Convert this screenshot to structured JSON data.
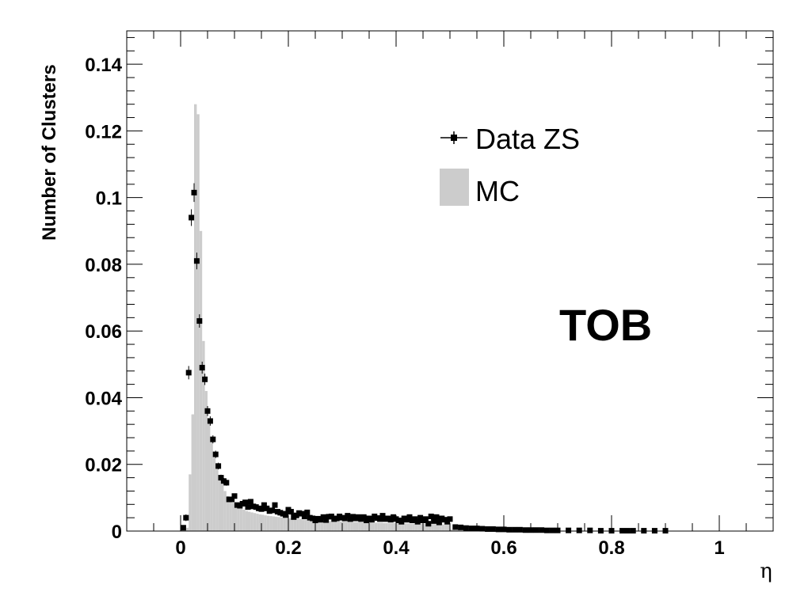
{
  "chart_data": {
    "type": "histogram",
    "xlabel": "η",
    "ylabel": "Number of Clusters",
    "xlim": [
      -0.1,
      1.1
    ],
    "ylim": [
      0,
      0.15
    ],
    "xticks": [
      "0",
      "0.2",
      "0.4",
      "0.6",
      "0.8",
      "1"
    ],
    "yticks": [
      "0",
      "0.02",
      "0.04",
      "0.06",
      "0.08",
      "0.1",
      "0.12",
      "0.14"
    ],
    "annotation": "TOB",
    "legend": [
      {
        "label": "Data ZS",
        "style": "marker",
        "color": "#000000"
      },
      {
        "label": "MC",
        "style": "fill",
        "color": "#cccccc"
      }
    ],
    "series": [
      {
        "name": "MC",
        "kind": "histogram",
        "color": "#cccccc",
        "bin_width": 0.005,
        "x": [
          0.0025,
          0.0075,
          0.0125,
          0.0175,
          0.0225,
          0.0275,
          0.0325,
          0.0375,
          0.0425,
          0.0475,
          0.0525,
          0.0575,
          0.0625,
          0.0675,
          0.0725,
          0.0775,
          0.0825,
          0.0875,
          0.0925,
          0.0975,
          0.1025,
          0.1075,
          0.1125,
          0.1175,
          0.1225,
          0.1275,
          0.1325,
          0.1375,
          0.1425,
          0.1475,
          0.1525,
          0.1575,
          0.1625,
          0.1675,
          0.1725,
          0.1775,
          0.1825,
          0.1875,
          0.1925,
          0.1975,
          0.2025,
          0.2075,
          0.2125,
          0.2175,
          0.2225,
          0.2275,
          0.2325,
          0.2375,
          0.2425,
          0.2475,
          0.2525,
          0.2575,
          0.2625,
          0.2675,
          0.2725,
          0.2775,
          0.2825,
          0.2875,
          0.2925,
          0.2975,
          0.3025,
          0.3075,
          0.3125,
          0.3175,
          0.3225,
          0.3275,
          0.3325,
          0.3375,
          0.3425,
          0.3475,
          0.3525,
          0.3575,
          0.3625,
          0.3675,
          0.3725,
          0.3775,
          0.3825,
          0.3875,
          0.3925,
          0.3975,
          0.4025,
          0.4075,
          0.4125,
          0.4175,
          0.4225,
          0.4275,
          0.4325,
          0.4375,
          0.4425,
          0.4475,
          0.4525,
          0.4575,
          0.4625,
          0.4675,
          0.4725,
          0.4775,
          0.4825,
          0.4875,
          0.4925,
          0.4975,
          0.5025,
          0.5075,
          0.5125,
          0.5175,
          0.5225,
          0.5275,
          0.5325,
          0.5375,
          0.5425,
          0.5475
        ],
        "values": [
          0,
          0,
          0.001,
          0.017,
          0.035,
          0.128,
          0.125,
          0.09,
          0.057,
          0.042,
          0.033,
          0.027,
          0.022,
          0.019,
          0.016,
          0.014,
          0.012,
          0.0105,
          0.0095,
          0.0085,
          0.0078,
          0.0072,
          0.0068,
          0.0064,
          0.006,
          0.0058,
          0.0056,
          0.0054,
          0.0052,
          0.005,
          0.0049,
          0.0047,
          0.0046,
          0.0045,
          0.0044,
          0.0043,
          0.0042,
          0.0041,
          0.004,
          0.0039,
          0.0038,
          0.0038,
          0.0037,
          0.0036,
          0.0036,
          0.0035,
          0.0035,
          0.0034,
          0.0034,
          0.0033,
          0.0033,
          0.0032,
          0.0032,
          0.0031,
          0.0031,
          0.003,
          0.003,
          0.003,
          0.0029,
          0.0029,
          0.0029,
          0.0028,
          0.0028,
          0.0028,
          0.0027,
          0.0027,
          0.0027,
          0.0026,
          0.0026,
          0.0026,
          0.0026,
          0.0025,
          0.0025,
          0.0025,
          0.0025,
          0.0024,
          0.0024,
          0.0024,
          0.0024,
          0.0024,
          0.0023,
          0.0023,
          0.0023,
          0.0023,
          0.0023,
          0.0022,
          0.0022,
          0.0022,
          0.0022,
          0.0022,
          0.0022,
          0.0021,
          0.0021,
          0.0021,
          0.0021,
          0.0021,
          0.0021,
          0.002,
          0.002,
          0.002,
          0.0005,
          0.0004,
          0.0003,
          0.0003,
          0.0002,
          0.0002,
          0.0002,
          0.0001,
          0.0001,
          0.0001
        ]
      },
      {
        "name": "Data ZS",
        "kind": "points",
        "color": "#000000",
        "x": [
          0.005,
          0.01,
          0.015,
          0.02,
          0.025,
          0.03,
          0.035,
          0.04,
          0.045,
          0.05,
          0.055,
          0.06,
          0.065,
          0.07,
          0.075,
          0.08,
          0.085,
          0.09,
          0.095,
          0.1,
          0.105,
          0.11,
          0.115,
          0.12,
          0.125,
          0.13,
          0.135,
          0.14,
          0.145,
          0.15,
          0.155,
          0.16,
          0.165,
          0.17,
          0.175,
          0.18,
          0.185,
          0.19,
          0.195,
          0.2,
          0.205,
          0.21,
          0.215,
          0.22,
          0.225,
          0.23,
          0.235,
          0.24,
          0.245,
          0.25,
          0.255,
          0.26,
          0.265,
          0.27,
          0.275,
          0.28,
          0.285,
          0.29,
          0.295,
          0.3,
          0.305,
          0.31,
          0.315,
          0.32,
          0.325,
          0.33,
          0.335,
          0.34,
          0.345,
          0.35,
          0.355,
          0.36,
          0.365,
          0.37,
          0.375,
          0.38,
          0.385,
          0.39,
          0.395,
          0.4,
          0.405,
          0.41,
          0.415,
          0.42,
          0.425,
          0.43,
          0.435,
          0.44,
          0.445,
          0.45,
          0.455,
          0.46,
          0.465,
          0.47,
          0.475,
          0.48,
          0.485,
          0.49,
          0.495,
          0.5,
          0.51,
          0.52,
          0.53,
          0.54,
          0.55,
          0.56,
          0.57,
          0.58,
          0.59,
          0.6,
          0.61,
          0.62,
          0.63,
          0.64,
          0.65,
          0.66,
          0.67,
          0.68,
          0.69,
          0.7,
          0.72,
          0.74,
          0.76,
          0.78,
          0.8,
          0.82,
          0.83,
          0.84,
          0.86,
          0.88,
          0.9
        ],
        "y": [
          0.001,
          0.004,
          0.0475,
          0.094,
          0.1015,
          0.081,
          0.063,
          0.049,
          0.0455,
          0.036,
          0.033,
          0.0275,
          0.023,
          0.0195,
          0.016,
          0.015,
          0.0145,
          0.0095,
          0.0095,
          0.0105,
          0.0078,
          0.0076,
          0.0082,
          0.0086,
          0.0072,
          0.0088,
          0.0074,
          0.0072,
          0.0068,
          0.0066,
          0.0078,
          0.0068,
          0.006,
          0.0062,
          0.0078,
          0.0058,
          0.0055,
          0.0052,
          0.0048,
          0.0064,
          0.0058,
          0.0042,
          0.0047,
          0.0054,
          0.0052,
          0.0044,
          0.0056,
          0.004,
          0.0038,
          0.0032,
          0.0037,
          0.0034,
          0.0042,
          0.0033,
          0.0043,
          0.0044,
          0.0036,
          0.0038,
          0.0044,
          0.004,
          0.0038,
          0.0046,
          0.0036,
          0.0043,
          0.0038,
          0.0042,
          0.0036,
          0.0042,
          0.0032,
          0.0038,
          0.0034,
          0.0044,
          0.0039,
          0.0036,
          0.0046,
          0.0036,
          0.0038,
          0.0034,
          0.0042,
          0.0036,
          0.0032,
          0.0028,
          0.0038,
          0.0034,
          0.0042,
          0.0032,
          0.0036,
          0.0028,
          0.004,
          0.0032,
          0.0036,
          0.0022,
          0.0044,
          0.003,
          0.0042,
          0.0026,
          0.0038,
          0.0034,
          0.0028,
          0.0036,
          0.0012,
          0.0011,
          0.0009,
          0.0008,
          0.0008,
          0.0007,
          0.0006,
          0.0006,
          0.0005,
          0.0005,
          0.0004,
          0.0004,
          0.0004,
          0.0003,
          0.0003,
          0.0003,
          0.0003,
          0.0002,
          0.0002,
          0.0002,
          0.0002,
          0.0002,
          0.0002,
          0.0001,
          0.0001,
          0.0001,
          0.0001,
          0.0001,
          0.0001,
          0.0001,
          0.0001
        ],
        "error": [
          0.0005,
          0.001,
          0.002,
          0.0025,
          0.0028,
          0.0025,
          0.002,
          0.0018,
          0.0017,
          0.0015,
          0.0014,
          0.0012,
          0.0011,
          0.001,
          0.0009,
          0.0009,
          0.0009,
          0.0007,
          0.0007,
          0.0007,
          0.0006,
          0.0006,
          0.0006,
          0.0006,
          0.0006,
          0.0006,
          0.0006,
          0.0005,
          0.0005,
          0.0005,
          0.0005,
          0.0005,
          0.0005,
          0.0005,
          0.0005,
          0.0005,
          0.0005,
          0.0005,
          0.0005,
          0.0005,
          0.0005,
          0.0004,
          0.0004,
          0.0004,
          0.0004,
          0.0004,
          0.0004,
          0.0004,
          0.0004,
          0.0004,
          0.0004,
          0.0004,
          0.0004,
          0.0004,
          0.0004,
          0.0004,
          0.0004,
          0.0004,
          0.0004,
          0.0004,
          0.0004,
          0.0004,
          0.0004,
          0.0004,
          0.0004,
          0.0004,
          0.0004,
          0.0004,
          0.0004,
          0.0004,
          0.0004,
          0.0004,
          0.0004,
          0.0004,
          0.0004,
          0.0004,
          0.0004,
          0.0004,
          0.0004,
          0.0004,
          0.0004,
          0.0004,
          0.0004,
          0.0004,
          0.0004,
          0.0004,
          0.0004,
          0.0004,
          0.0004,
          0.0004,
          0.0004,
          0.0004,
          0.0004,
          0.0004,
          0.0004,
          0.0004,
          0.0004,
          0.0004,
          0.0004,
          0.0004,
          0.0002,
          0.0002,
          0.0002,
          0.0002,
          0.0002,
          0.0002,
          0.0002,
          0.0002,
          0.0002,
          0.0002,
          0.0002,
          0.0002,
          0.0002,
          0.0002,
          0.0002,
          0.0002,
          0.0002,
          0.0002,
          0.0002,
          0.0002,
          0.0002,
          0.0002,
          0.0002,
          0.0001,
          0.0001,
          0.0001,
          0.0001,
          0.0001,
          0.0001,
          0.0001,
          0.0001
        ]
      }
    ]
  }
}
